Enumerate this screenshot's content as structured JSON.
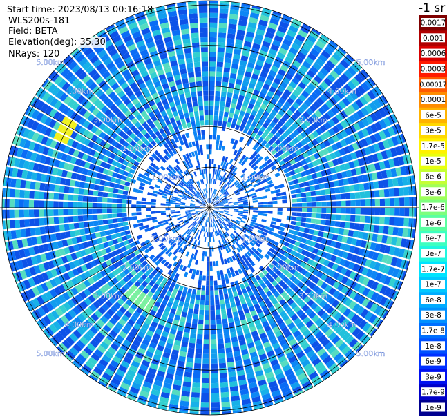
{
  "header": {
    "start_time": "Start time: 2023/08/13 00:16:18",
    "instrument": "WLS200s-181",
    "field": "Field: BETA",
    "elevation": "Elevation(deg): 35.30",
    "nrays": "NRays: 120"
  },
  "chart_data": {
    "type": "heatmap",
    "projection": "polar-ppi",
    "field": "BETA",
    "elevation_deg": 35.3,
    "nrays": 120,
    "range_ring_labels": [
      "1.00km",
      "2.00km",
      "3.00km",
      "4.00km",
      "5.00km"
    ],
    "range_rings_km": [
      1,
      2,
      3,
      4,
      5
    ],
    "max_range_km": 5.1,
    "colorbar": {
      "unit_label": "-1 sr",
      "tick_labels": [
        "0.0017",
        "0.001",
        "0.0006",
        "0.0003",
        "0.00017",
        "0.0001",
        "6e-5",
        "3e-5",
        "1.7e-5",
        "1e-5",
        "6e-6",
        "3e-6",
        "1.7e-6",
        "1e-6",
        "6e-7",
        "3e-7",
        "1.7e-7",
        "1e-7",
        "6e-8",
        "3e-8",
        "1.7e-8",
        "1e-8",
        "6e-9",
        "3e-9",
        "1.7e-9",
        "1e-9"
      ],
      "colors": [
        "#7f0000",
        "#b00000",
        "#d80000",
        "#ff1a00",
        "#ff5a00",
        "#ff8c00",
        "#ffb300",
        "#ffd800",
        "#fff200",
        "#e8ff10",
        "#c4ff35",
        "#9fff5a",
        "#7dff7d",
        "#5affa0",
        "#3dffc0",
        "#1ff7e0",
        "#00e4ff",
        "#00c8ff",
        "#00acff",
        "#0090ff",
        "#0070ff",
        "#0050ff",
        "#0030ff",
        "#0010f0",
        "#0000c8",
        "#00008f"
      ]
    },
    "dominant_level": "1e-8 to 1e-7",
    "features": [
      {
        "description": "enhanced return arc",
        "azimuth_deg_from": 295,
        "azimuth_deg_to": 302,
        "range_km": 4.0,
        "peak_level": "1e-5"
      },
      {
        "description": "moderate patch",
        "azimuth_deg_from": 210,
        "azimuth_deg_to": 225,
        "range_km": 2.8,
        "peak_level": "3e-7"
      }
    ]
  }
}
